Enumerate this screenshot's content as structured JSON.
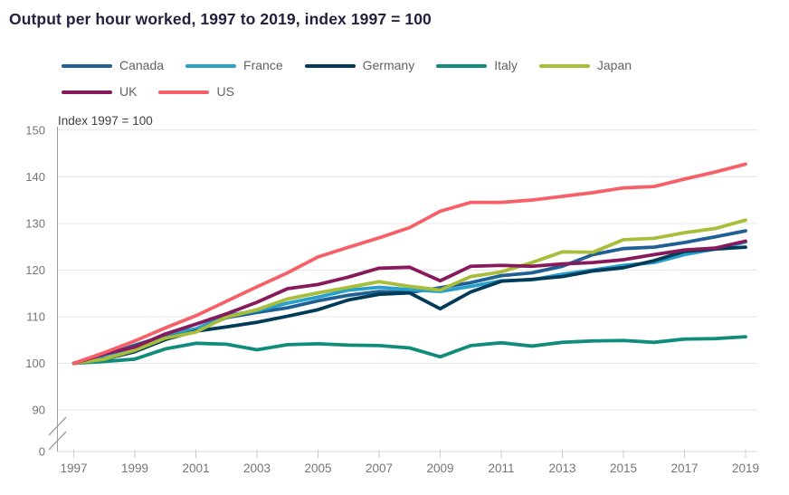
{
  "title": "Output per hour worked, 1997 to 2019, index 1997 = 100",
  "chart_data": {
    "type": "line",
    "title": "Output per hour worked, 1997 to 2019, index 1997 = 100",
    "axis_note": "Index 1997 = 100",
    "xlabel": "",
    "ylabel": "Index 1997 = 100",
    "grid": true,
    "legend_position": "top-left",
    "y_axis_break": true,
    "ylim": [
      0,
      150
    ],
    "y_ticks": [
      0,
      90,
      100,
      110,
      120,
      130,
      140,
      150
    ],
    "x_ticks": [
      1997,
      1999,
      2001,
      2003,
      2005,
      2007,
      2009,
      2011,
      2013,
      2015,
      2017,
      2019
    ],
    "x": [
      1997,
      1998,
      1999,
      2000,
      2001,
      2002,
      2003,
      2004,
      2005,
      2006,
      2007,
      2008,
      2009,
      2010,
      2011,
      2012,
      2013,
      2014,
      2015,
      2016,
      2017,
      2018,
      2019
    ],
    "series": [
      {
        "name": "Canada",
        "color": "#206095",
        "values": [
          100,
          101.7,
          103.9,
          105.9,
          107.1,
          109.8,
          110.9,
          111.9,
          113.4,
          114.6,
          115.4,
          115.2,
          116.2,
          117.3,
          118.8,
          119.4,
          120.8,
          123.3,
          124.6,
          124.9,
          125.9,
          127.1,
          128.4
        ]
      },
      {
        "name": "France",
        "color": "#27A0CC",
        "values": [
          100,
          101.8,
          103.3,
          106.3,
          107.4,
          110.2,
          111.3,
          112.9,
          114.2,
          115.7,
          116.3,
          115.8,
          115.4,
          116.5,
          117.7,
          117.9,
          119.1,
          120.0,
          121.0,
          121.6,
          123.3,
          124.5,
          126.0
        ]
      },
      {
        "name": "Germany",
        "color": "#003C57",
        "values": [
          100,
          100.9,
          102.5,
          105.1,
          106.9,
          107.8,
          108.8,
          110.1,
          111.5,
          113.6,
          114.8,
          115.1,
          111.7,
          115.3,
          117.6,
          118.0,
          118.6,
          119.8,
          120.5,
          122.0,
          124.0,
          124.5,
          124.9
        ]
      },
      {
        "name": "Italy",
        "color": "#118C7B",
        "values": [
          100,
          100.4,
          100.9,
          103.1,
          104.3,
          104.1,
          102.9,
          104.0,
          104.2,
          103.9,
          103.8,
          103.3,
          101.4,
          103.8,
          104.4,
          103.7,
          104.5,
          104.8,
          104.9,
          104.5,
          105.2,
          105.3,
          105.7
        ]
      },
      {
        "name": "Japan",
        "color": "#A8BD3A",
        "values": [
          100,
          100.9,
          102.8,
          105.4,
          106.7,
          109.9,
          111.5,
          113.8,
          115.1,
          116.3,
          117.5,
          116.5,
          115.7,
          118.6,
          119.6,
          121.6,
          123.9,
          123.8,
          126.5,
          126.8,
          128.0,
          128.9,
          130.7
        ]
      },
      {
        "name": "UK",
        "color": "#871A5B",
        "values": [
          100,
          102.0,
          103.5,
          106.3,
          108.4,
          110.6,
          113.1,
          116.0,
          116.9,
          118.5,
          120.4,
          120.6,
          117.7,
          120.8,
          121.0,
          120.8,
          121.3,
          121.6,
          122.2,
          123.3,
          124.3,
          124.7,
          126.2
        ]
      },
      {
        "name": "US",
        "color": "#F66068",
        "values": [
          100,
          102.3,
          104.8,
          107.6,
          110.2,
          113.3,
          116.4,
          119.4,
          122.8,
          124.9,
          126.9,
          129.1,
          132.6,
          134.5,
          134.5,
          135.0,
          135.8,
          136.6,
          137.6,
          137.9,
          139.5,
          141.0,
          142.7
        ]
      }
    ]
  },
  "plot_style": {
    "gridline_color": "#e4e4e4",
    "baseline_color": "#d9d9d9",
    "axis_color": "#9d9d9d",
    "tick_color": "#c9c9c9",
    "tick_label_color": "#757575",
    "line_width": 3.8
  }
}
